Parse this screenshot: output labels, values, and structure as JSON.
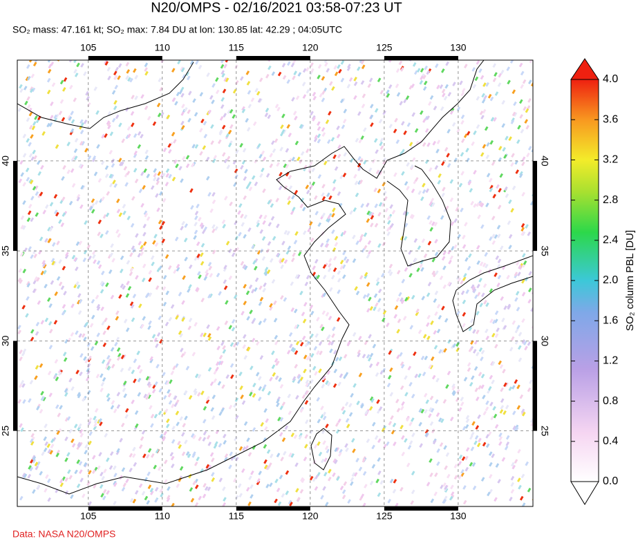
{
  "map": {
    "title": "N20/OMPS - 02/16/2021 03:58-07:23 UT",
    "subtitle": "SO₂ mass: 47.161 kt; SO₂ max: 7.84 DU at lon: 130.85 lat: 42.29 ; 04:05UTC",
    "lonlim": [
      100.2,
      135.05
    ],
    "latlim": [
      20.8,
      45.6
    ],
    "lonticks": [
      105,
      110,
      115,
      120,
      125,
      130
    ],
    "latticks": [
      25,
      30,
      35,
      40
    ],
    "colorbar": {
      "label": "SO₂ column PBL [DU]",
      "lim": [
        0,
        4
      ],
      "ticks": [
        {
          "value": 0,
          "label": "0.0"
        },
        {
          "value": 0.4,
          "label": "0.4"
        },
        {
          "value": 0.8,
          "label": "0.8"
        },
        {
          "value": 1.2,
          "label": "1.2"
        },
        {
          "value": 1.6,
          "label": "1.6"
        },
        {
          "value": 2,
          "label": "2.0"
        },
        {
          "value": 2.4,
          "label": "2.4"
        },
        {
          "value": 2.8,
          "label": "2.8"
        },
        {
          "value": 3.2,
          "label": "3.2"
        },
        {
          "value": 3.6,
          "label": "3.6"
        },
        {
          "value": 4,
          "label": "4.0"
        }
      ]
    },
    "credit": "Data: NASA N20/OMPS"
  }
}
